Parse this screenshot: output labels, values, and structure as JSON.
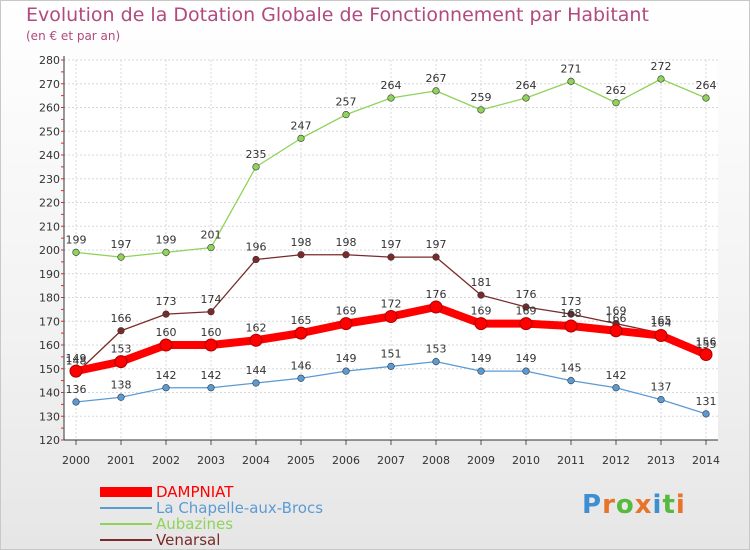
{
  "title": "Evolution de la Dotation Globale de Fonctionnement par Habitant",
  "subtitle": "(en € et par an)",
  "logo": {
    "text": "Proxiti",
    "letters": [
      "P",
      "r",
      "o",
      "x",
      "i",
      "t",
      "i"
    ],
    "colors": [
      "#3d8fd1",
      "#e8742a",
      "#58b93f",
      "#e8742a",
      "#3d8fd1",
      "#58b93f",
      "#e8742a"
    ]
  },
  "chart_data": {
    "type": "line",
    "title": "Evolution de la Dotation Globale de Fonctionnement par Habitant",
    "subtitle": "(en € et par an)",
    "x": [
      "2000",
      "2001",
      "2002",
      "2003",
      "2004",
      "2005",
      "2006",
      "2007",
      "2008",
      "2009",
      "2010",
      "2011",
      "2012",
      "2013",
      "2014"
    ],
    "ylim": [
      120,
      280
    ],
    "yticks": [
      "120",
      "130",
      "140",
      "150",
      "160",
      "170",
      "180",
      "190",
      "200",
      "210",
      "220",
      "230",
      "240",
      "250",
      "260",
      "270",
      "280"
    ],
    "grid": true,
    "legend_position": "bottom-left",
    "series": [
      {
        "name": "DAMPNIAT",
        "color": "#ff0000",
        "values": [
          149,
          153,
          160,
          160,
          162,
          165,
          169,
          172,
          176,
          169,
          169,
          168,
          166,
          164,
          156
        ]
      },
      {
        "name": "La Chapelle-aux-Brocs",
        "color": "#5b9bd5",
        "values": [
          136,
          138,
          142,
          142,
          144,
          146,
          149,
          151,
          153,
          149,
          149,
          145,
          142,
          137,
          131
        ]
      },
      {
        "name": "Aubazines",
        "color": "#8fd35a",
        "values": [
          199,
          197,
          199,
          201,
          235,
          247,
          257,
          264,
          267,
          259,
          264,
          271,
          262,
          272,
          264
        ]
      },
      {
        "name": "Venarsal",
        "color": "#7a2a2a",
        "values": [
          148,
          166,
          173,
          174,
          196,
          198,
          198,
          197,
          197,
          181,
          176,
          173,
          169,
          165,
          155
        ]
      }
    ]
  }
}
